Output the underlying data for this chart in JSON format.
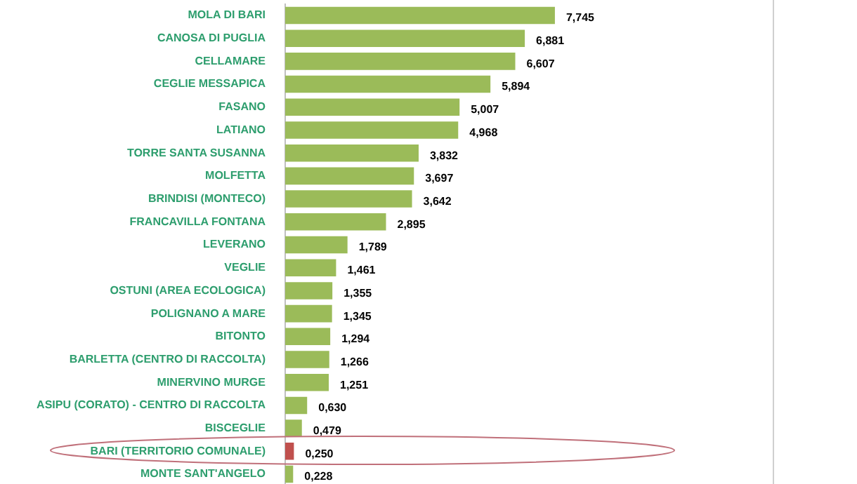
{
  "chart_data": {
    "type": "bar",
    "orientation": "horizontal",
    "categories": [
      "MOLA DI BARI",
      "CANOSA DI PUGLIA",
      "CELLAMARE",
      "CEGLIE MESSAPICA",
      "FASANO",
      "LATIANO",
      "TORRE SANTA SUSANNA",
      "MOLFETTA",
      "BRINDISI (MONTECO)",
      "FRANCAVILLA FONTANA",
      "LEVERANO",
      "VEGLIE",
      "OSTUNI (AREA ECOLOGICA)",
      "POLIGNANO A MARE",
      "BITONTO",
      "BARLETTA (CENTRO DI RACCOLTA)",
      "MINERVINO MURGE",
      "ASIPU (CORATO) - CENTRO DI RACCOLTA",
      "BISCEGLIE",
      "BARI (TERRITORIO COMUNALE)",
      "MONTE SANT'ANGELO"
    ],
    "values": [
      7.745,
      6.881,
      6.607,
      5.894,
      5.007,
      4.968,
      3.832,
      3.697,
      3.642,
      2.895,
      1.789,
      1.461,
      1.355,
      1.345,
      1.294,
      1.266,
      1.251,
      0.63,
      0.479,
      0.25,
      0.228
    ],
    "value_labels": [
      "7,745",
      "6,881",
      "6,607",
      "5,894",
      "5,007",
      "4,968",
      "3,832",
      "3,697",
      "3,642",
      "2,895",
      "1,789",
      "1,461",
      "1,355",
      "1,345",
      "1,294",
      "1,266",
      "1,251",
      "0,630",
      "0,479",
      "0,250",
      "0,228"
    ],
    "colors": [
      "#9bbb59",
      "#9bbb59",
      "#9bbb59",
      "#9bbb59",
      "#9bbb59",
      "#9bbb59",
      "#9bbb59",
      "#9bbb59",
      "#9bbb59",
      "#9bbb59",
      "#9bbb59",
      "#9bbb59",
      "#9bbb59",
      "#9bbb59",
      "#9bbb59",
      "#9bbb59",
      "#9bbb59",
      "#9bbb59",
      "#9bbb59",
      "#c0504d",
      "#9bbb59"
    ],
    "xlim": [
      0,
      14
    ],
    "legend": false,
    "tick_labels": "y"
  }
}
